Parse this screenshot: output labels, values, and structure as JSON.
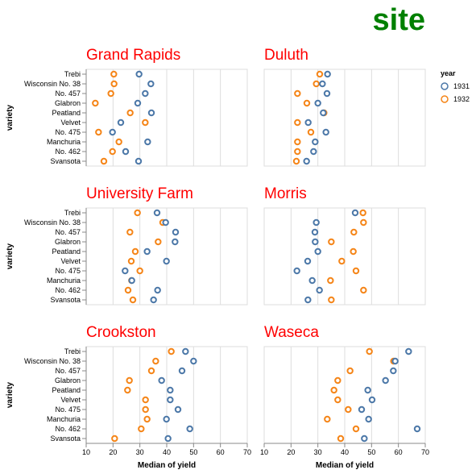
{
  "chart_data": {
    "type": "scatter",
    "title": "site",
    "title_color": "#008000",
    "facet_title_color": "#ff0000",
    "xlabel": "Median of yield",
    "ylabel": "variety",
    "xlim": [
      10,
      70
    ],
    "xticks": [
      10,
      20,
      30,
      40,
      50,
      60,
      70
    ],
    "grid": true,
    "legend": {
      "title": "year",
      "position": "top-right",
      "entries": [
        "1931",
        "1932"
      ]
    },
    "colors": {
      "1931": "#4c78a8",
      "1932": "#f58518"
    },
    "varieties": [
      "Trebi",
      "Wisconsin No. 38",
      "No. 457",
      "Glabron",
      "Peatland",
      "Velvet",
      "No. 475",
      "Manchuria",
      "No. 462",
      "Svansota"
    ],
    "sites": [
      {
        "name": "Grand Rapids",
        "1931": [
          29.7,
          34.1,
          32.0,
          29.2,
          34.3,
          22.9,
          19.8,
          32.9,
          24.7,
          29.5
        ],
        "1932": [
          20.3,
          20.4,
          19.2,
          13.4,
          26.4,
          32.0,
          14.6,
          22.2,
          19.8,
          16.6
        ]
      },
      {
        "name": "Duluth",
        "1931": [
          33.6,
          31.7,
          33.4,
          30.0,
          32.0,
          26.4,
          33.0,
          29.0,
          28.4,
          25.8
        ],
        "1932": [
          30.7,
          29.4,
          22.4,
          25.9,
          32.3,
          22.4,
          27.4,
          22.4,
          22.4,
          22.0
        ]
      },
      {
        "name": "University Farm",
        "1931": [
          36.4,
          39.6,
          43.3,
          43.1,
          32.7,
          39.9,
          24.5,
          27.0,
          36.6,
          35.1
        ],
        "1932": [
          29.1,
          38.5,
          26.3,
          36.8,
          28.3,
          26.8,
          30.0,
          26.9,
          25.6,
          27.4
        ]
      },
      {
        "name": "Morris",
        "1931": [
          43.9,
          29.4,
          28.9,
          29.0,
          30.0,
          26.2,
          22.2,
          27.9,
          30.6,
          26.3
        ],
        "1932": [
          46.8,
          47.0,
          43.4,
          35.0,
          43.2,
          38.9,
          44.2,
          34.7,
          47.0,
          35.0
        ]
      },
      {
        "name": "Crookston",
        "1931": [
          47.0,
          50.0,
          45.7,
          38.1,
          41.3,
          41.3,
          44.2,
          39.9,
          48.6,
          40.5
        ],
        "1932": [
          41.7,
          35.9,
          34.3,
          26.1,
          25.4,
          32.1,
          32.1,
          32.7,
          30.5,
          20.6
        ]
      },
      {
        "name": "Waseca",
        "1931": [
          63.8,
          58.8,
          58.1,
          55.2,
          48.6,
          50.2,
          46.3,
          48.9,
          67.0,
          47.3
        ],
        "1932": [
          49.2,
          58.2,
          42.0,
          37.4,
          36.0,
          37.4,
          41.3,
          33.5,
          44.2,
          38.5
        ]
      }
    ]
  }
}
